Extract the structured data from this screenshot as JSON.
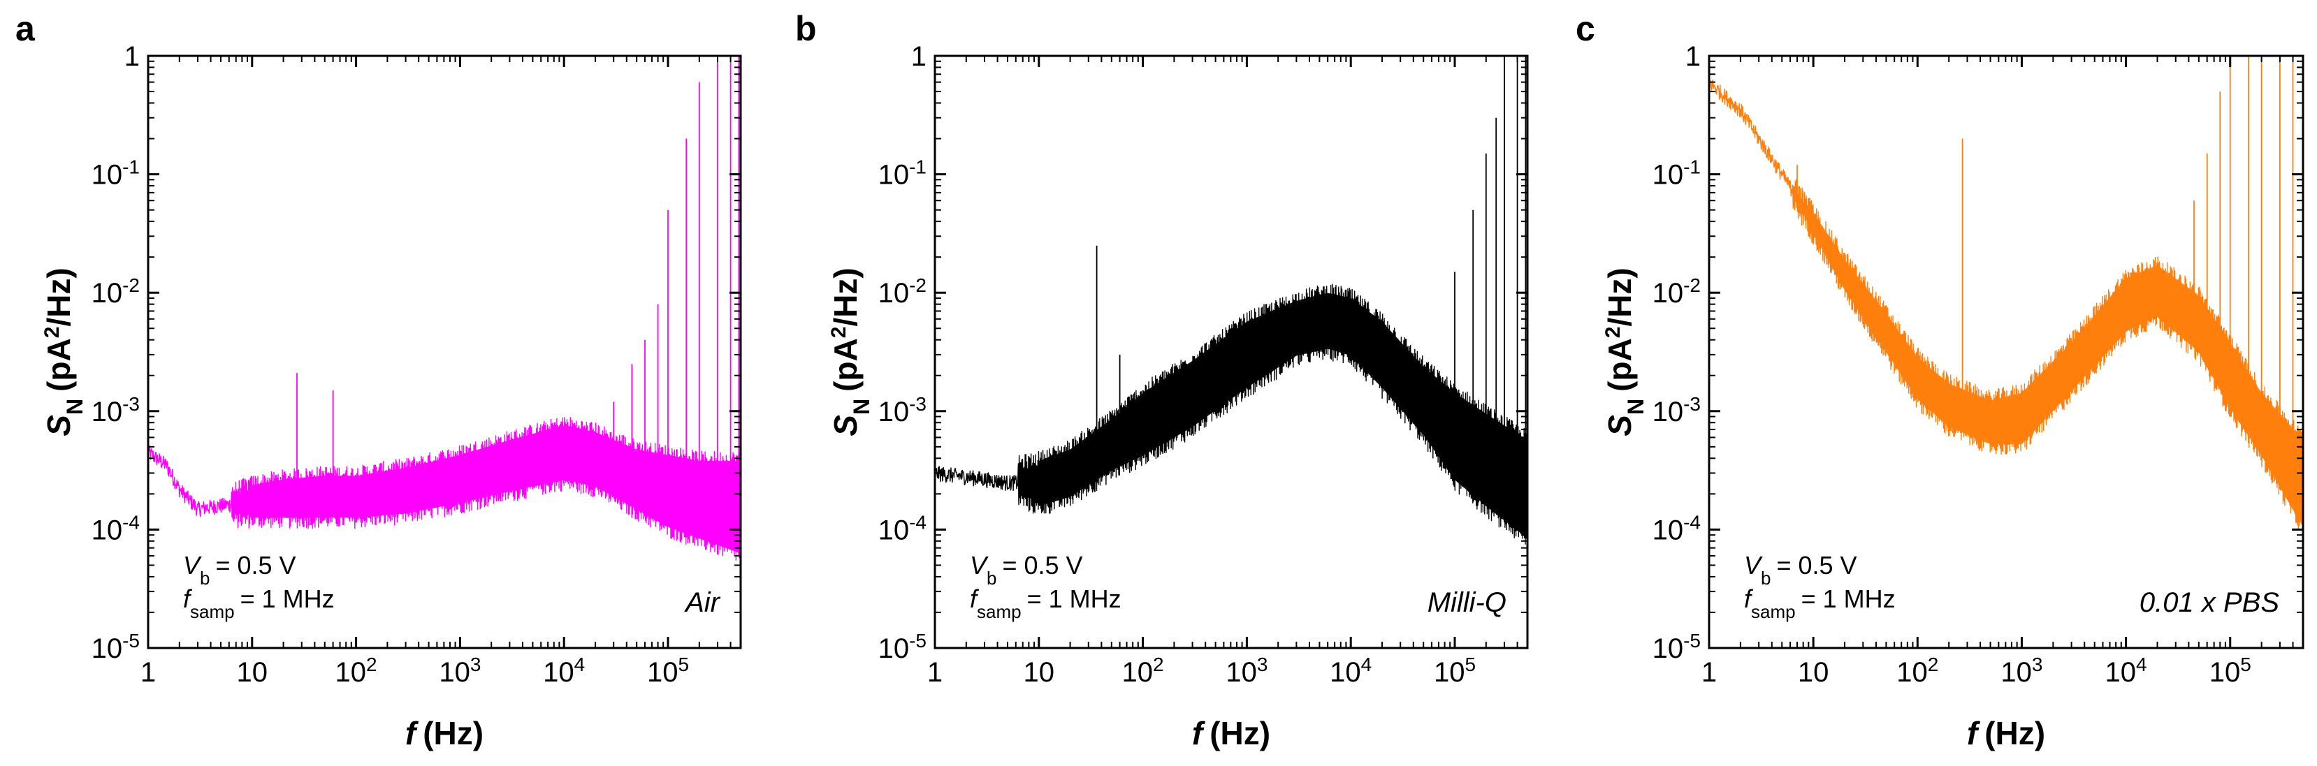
{
  "figure": {
    "panels": [
      {
        "label": "a",
        "medium": "Air",
        "color": "#ff00ff",
        "vb_text": "= 0.5 V",
        "fsamp_text": "= 1 MHz"
      },
      {
        "label": "b",
        "medium": "Milli-Q",
        "color": "#000000",
        "vb_text": "= 0.5 V",
        "fsamp_text": "= 1 MHz"
      },
      {
        "label": "c",
        "medium": "0.01 x PBS",
        "color": "#ff7f0e",
        "vb_text": "= 0.5 V",
        "fsamp_text": "= 1 MHz"
      }
    ],
    "symbols": {
      "V": "V",
      "b_sub": "b",
      "f": "f",
      "samp_sub": "samp",
      "S": "S",
      "N_sub": "N"
    },
    "xaxis_title": {
      "var": "f",
      "unit": "(Hz)"
    },
    "yaxis_title": {
      "var": "S",
      "sub": "N",
      "unit_pre": "(pA",
      "unit_sup": "2",
      "unit_post": "/Hz)"
    }
  },
  "chart_data": [
    {
      "type": "line",
      "title": "a",
      "series_name": "Air",
      "color": "#ff00ff",
      "xscale": "log",
      "yscale": "log",
      "xlim": [
        1,
        500000
      ],
      "ylim": [
        1e-05,
        1
      ],
      "xlabel": "f (Hz)",
      "ylabel": "S_N (pA^2/Hz)",
      "xticks": [
        "1",
        "10",
        "10^2",
        "10^3",
        "10^4",
        "10^5"
      ],
      "yticks": [
        "10^-5",
        "10^-4",
        "10^-3",
        "10^-2",
        "10^-1",
        "1"
      ],
      "annotations": [
        "V_b = 0.5 V",
        "f_samp = 1 MHz",
        "Air"
      ],
      "envelope": {
        "f": [
          1,
          1.5,
          2,
          3,
          5,
          10,
          20,
          50,
          100,
          300,
          1000,
          3000,
          10000,
          20000,
          50000,
          100000,
          200000,
          500000
        ],
        "mean": [
          0.00045,
          0.00035,
          0.00022,
          0.00015,
          0.00016,
          0.00017,
          0.00018,
          0.0002,
          0.0002,
          0.00022,
          0.00028,
          0.00042,
          0.00055,
          0.0005,
          0.00035,
          0.00025,
          0.0002,
          0.00015
        ],
        "low": [
          0.00045,
          0.00035,
          0.00022,
          0.00013,
          0.00012,
          0.00012,
          0.00012,
          0.00012,
          0.00012,
          0.00013,
          0.00016,
          0.0002,
          0.00025,
          0.00022,
          0.00014,
          0.0001,
          8e-05,
          6e-05
        ],
        "high": [
          0.00045,
          0.00035,
          0.00022,
          0.00018,
          0.0002,
          0.00025,
          0.00028,
          0.0003,
          0.0003,
          0.00035,
          0.00045,
          0.0006,
          0.0008,
          0.0007,
          0.0005,
          0.00045,
          0.0004,
          0.0004
        ]
      },
      "spikes": [
        [
          27,
          0.0021
        ],
        [
          60,
          0.0015
        ],
        [
          30000,
          0.0012
        ],
        [
          45000,
          0.0025
        ],
        [
          60000,
          0.004
        ],
        [
          80000,
          0.008
        ],
        [
          100000,
          0.05
        ],
        [
          150000,
          0.2
        ],
        [
          200000,
          0.6
        ],
        [
          300000,
          1
        ],
        [
          400000,
          1
        ],
        [
          480000,
          1
        ]
      ]
    },
    {
      "type": "line",
      "title": "b",
      "series_name": "Milli-Q",
      "color": "#000000",
      "xscale": "log",
      "yscale": "log",
      "xlim": [
        1,
        500000
      ],
      "ylim": [
        1e-05,
        1
      ],
      "xlabel": "f (Hz)",
      "ylabel": "S_N (pA^2/Hz)",
      "xticks": [
        "1",
        "10",
        "10^2",
        "10^3",
        "10^4",
        "10^5"
      ],
      "yticks": [
        "10^-5",
        "10^-4",
        "10^-3",
        "10^-2",
        "10^-1",
        "1"
      ],
      "annotations": [
        "V_b = 0.5 V",
        "f_samp = 1 MHz",
        "Milli-Q"
      ],
      "envelope": {
        "f": [
          1,
          2,
          5,
          10,
          20,
          50,
          100,
          300,
          1000,
          3000,
          6000,
          10000,
          20000,
          50000,
          100000,
          200000,
          500000
        ],
        "mean": [
          0.0003,
          0.00028,
          0.00025,
          0.00025,
          0.0003,
          0.0005,
          0.0008,
          0.0015,
          0.003,
          0.0055,
          0.006,
          0.0055,
          0.003,
          0.0012,
          0.0006,
          0.0004,
          0.0002
        ],
        "low": [
          0.0003,
          0.00026,
          0.0002,
          0.00015,
          0.00018,
          0.0003,
          0.0004,
          0.0007,
          0.0015,
          0.0028,
          0.0032,
          0.0028,
          0.0015,
          0.0006,
          0.00025,
          0.00015,
          8e-05
        ],
        "high": [
          0.0003,
          0.0003,
          0.00035,
          0.0004,
          0.0005,
          0.0009,
          0.0015,
          0.0028,
          0.006,
          0.009,
          0.0105,
          0.0095,
          0.006,
          0.0025,
          0.0015,
          0.001,
          0.0006
        ]
      },
      "spikes": [
        [
          36,
          0.025
        ],
        [
          60,
          0.003
        ],
        [
          100000,
          0.015
        ],
        [
          150000,
          0.05
        ],
        [
          200000,
          0.15
        ],
        [
          250000,
          0.3
        ],
        [
          300000,
          1
        ],
        [
          400000,
          1
        ],
        [
          480000,
          1
        ]
      ]
    },
    {
      "type": "line",
      "title": "c",
      "series_name": "0.01 x PBS",
      "color": "#ff7f0e",
      "xscale": "log",
      "yscale": "log",
      "xlim": [
        1,
        500000
      ],
      "ylim": [
        1e-05,
        1
      ],
      "xlabel": "f (Hz)",
      "ylabel": "S_N (pA^2/Hz)",
      "xticks": [
        "1",
        "10",
        "10^2",
        "10^3",
        "10^4",
        "10^5"
      ],
      "yticks": [
        "10^-5",
        "10^-4",
        "10^-3",
        "10^-2",
        "10^-1",
        "1"
      ],
      "annotations": [
        "V_b = 0.5 V",
        "f_samp = 1 MHz",
        "0.01 x PBS"
      ],
      "envelope": {
        "f": [
          1,
          2,
          3,
          5,
          10,
          20,
          50,
          100,
          200,
          500,
          1000,
          3000,
          10000,
          20000,
          50000,
          100000,
          200000,
          500000
        ],
        "mean": [
          0.6,
          0.35,
          0.2,
          0.1,
          0.04,
          0.015,
          0.005,
          0.002,
          0.0012,
          0.0008,
          0.0009,
          0.0025,
          0.008,
          0.011,
          0.006,
          0.002,
          0.0008,
          0.0003
        ],
        "low": [
          0.6,
          0.33,
          0.18,
          0.08,
          0.03,
          0.01,
          0.003,
          0.0012,
          0.0007,
          0.0005,
          0.0005,
          0.0014,
          0.0045,
          0.006,
          0.003,
          0.001,
          0.0004,
          0.0001
        ],
        "high": [
          0.6,
          0.37,
          0.22,
          0.12,
          0.05,
          0.02,
          0.007,
          0.003,
          0.0018,
          0.0013,
          0.0015,
          0.004,
          0.014,
          0.018,
          0.01,
          0.004,
          0.0015,
          0.0006
        ]
      },
      "spikes": [
        [
          7,
          0.12
        ],
        [
          270,
          0.2
        ],
        [
          45000,
          0.06
        ],
        [
          60000,
          0.15
        ],
        [
          80000,
          0.5
        ],
        [
          100000,
          1
        ],
        [
          150000,
          1
        ],
        [
          200000,
          1
        ],
        [
          300000,
          1
        ],
        [
          400000,
          1
        ]
      ]
    }
  ]
}
